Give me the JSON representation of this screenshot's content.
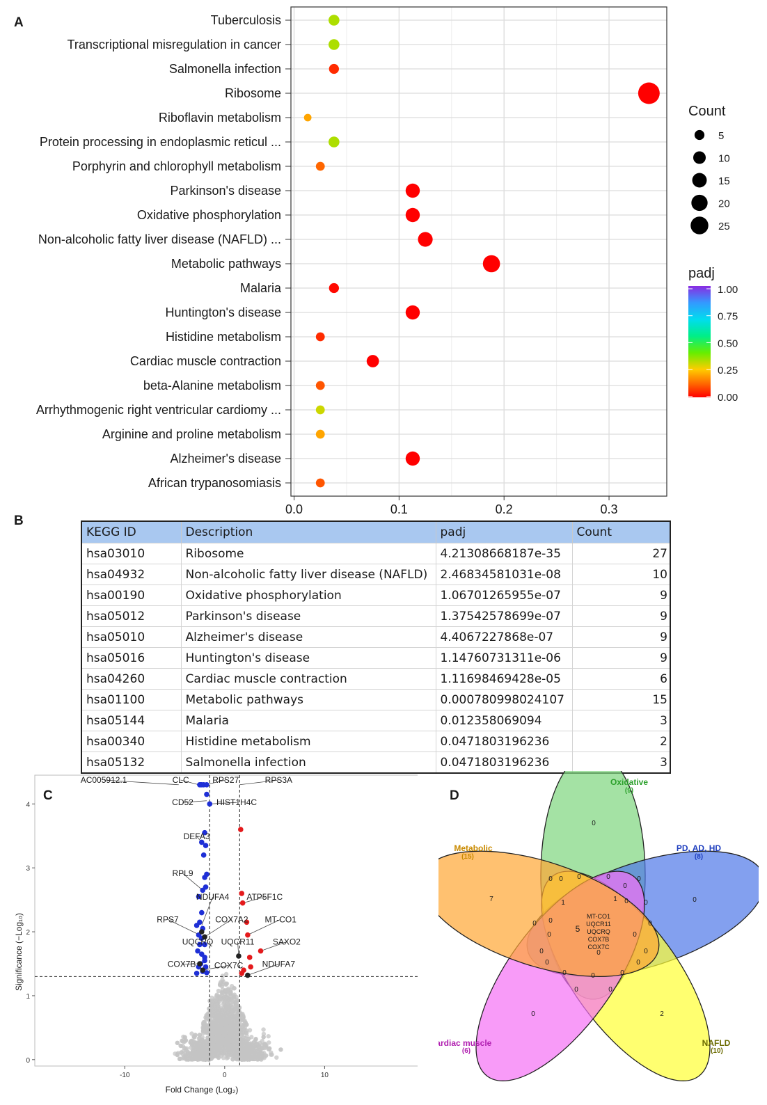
{
  "panels": {
    "a": "A",
    "b": "B",
    "c": "C",
    "d": "D"
  },
  "panel_a": {
    "chart_data": {
      "type": "scatter",
      "x_ticks": [
        "0.0",
        "0.1",
        "0.2",
        "0.3"
      ],
      "xlim": [
        -0.003,
        0.355
      ],
      "categories": [
        {
          "label": "Tuberculosis",
          "x": 0.038,
          "count": 4,
          "padj": 0.33
        },
        {
          "label": "Transcriptional misregulation in cancer",
          "x": 0.038,
          "count": 4,
          "padj": 0.33
        },
        {
          "label": "Salmonella infection",
          "x": 0.038,
          "count": 3,
          "padj": 0.05
        },
        {
          "label": "Ribosome",
          "x": 0.338,
          "count": 27,
          "padj": 0.0
        },
        {
          "label": "Riboflavin metabolism",
          "x": 0.013,
          "count": 1,
          "padj": 0.2
        },
        {
          "label": "Protein processing in endoplasmic reticul ...",
          "x": 0.038,
          "count": 4,
          "padj": 0.33
        },
        {
          "label": "Porphyrin and chlorophyll metabolism",
          "x": 0.025,
          "count": 2,
          "padj": 0.12
        },
        {
          "label": "Parkinson's disease",
          "x": 0.113,
          "count": 9,
          "padj": 0.0
        },
        {
          "label": "Oxidative phosphorylation",
          "x": 0.113,
          "count": 9,
          "padj": 0.0
        },
        {
          "label": "Non-alcoholic fatty liver disease (NAFLD) ...",
          "x": 0.125,
          "count": 10,
          "padj": 0.0
        },
        {
          "label": "Metabolic pathways",
          "x": 0.188,
          "count": 15,
          "padj": 0.0
        },
        {
          "label": "Malaria",
          "x": 0.038,
          "count": 3,
          "padj": 0.01
        },
        {
          "label": "Huntington's disease",
          "x": 0.113,
          "count": 9,
          "padj": 0.0
        },
        {
          "label": "Histidine metabolism",
          "x": 0.025,
          "count": 2,
          "padj": 0.05
        },
        {
          "label": "Cardiac muscle contraction",
          "x": 0.075,
          "count": 6,
          "padj": 0.0
        },
        {
          "label": "beta-Alanine metabolism",
          "x": 0.025,
          "count": 2,
          "padj": 0.1
        },
        {
          "label": "Arrhythmogenic right ventricular cardiomy ...",
          "x": 0.025,
          "count": 2,
          "padj": 0.3
        },
        {
          "label": "Arginine and proline metabolism",
          "x": 0.025,
          "count": 2,
          "padj": 0.2
        },
        {
          "label": "Alzheimer's disease",
          "x": 0.113,
          "count": 9,
          "padj": 0.0
        },
        {
          "label": "African trypanosomiasis",
          "x": 0.025,
          "count": 2,
          "padj": 0.1
        }
      ],
      "legend_count_title": "Count",
      "legend_count_values": [
        "5",
        "10",
        "15",
        "20",
        "25"
      ],
      "legend_padj_title": "padj",
      "legend_padj_ticks": [
        "1.00",
        "0.75",
        "0.50",
        "0.25",
        "0.00"
      ],
      "colors": {
        "low": "#ff0000",
        "high": "#8a2be2",
        "grid": "#e4e4e4",
        "panel_bg": "#ffffff"
      }
    }
  },
  "panel_b": {
    "headers": [
      "KEGG ID",
      "Description",
      "padj",
      "Count"
    ],
    "rows": [
      [
        "hsa03010",
        "Ribosome",
        "4.21308668187e-35",
        "27"
      ],
      [
        "hsa04932",
        "Non-alcoholic fatty liver disease (NAFLD)",
        "2.46834581031e-08",
        "10"
      ],
      [
        "hsa00190",
        "Oxidative phosphorylation",
        "1.06701265955e-07",
        "9"
      ],
      [
        "hsa05012",
        "Parkinson's disease",
        "1.37542578699e-07",
        "9"
      ],
      [
        "hsa05010",
        "Alzheimer's disease",
        "4.4067227868e-07",
        "9"
      ],
      [
        "hsa05016",
        "Huntington's disease",
        "1.14760731311e-06",
        "9"
      ],
      [
        "hsa04260",
        "Cardiac muscle contraction",
        "1.11698469428e-05",
        "6"
      ],
      [
        "hsa01100",
        "Metabolic pathways",
        "0.000780998024107",
        "15"
      ],
      [
        "hsa05144",
        "Malaria",
        "0.012358069094",
        "3"
      ],
      [
        "hsa00340",
        "Histidine metabolism",
        "0.0471803196236",
        "2"
      ],
      [
        "hsa05132",
        "Salmonella infection",
        "0.0471803196236",
        "3"
      ]
    ]
  },
  "panel_c": {
    "chart_data": {
      "type": "scatter",
      "xlabel": "Fold Change (Log₂)",
      "ylabel": "Significance (−Log₁₀)",
      "x_ticks": [
        "-10",
        "0",
        "10"
      ],
      "y_ticks": [
        "0",
        "1",
        "2",
        "3",
        "4"
      ],
      "xlim": [
        -19,
        20
      ],
      "ylim": [
        -0.1,
        4.45
      ],
      "threshold_x": [
        -1.5,
        1.5
      ],
      "threshold_y": 1.3,
      "blue_points": [
        [
          -2.5,
          4.3
        ],
        [
          -2.4,
          4.3
        ],
        [
          -2.3,
          4.3
        ],
        [
          -2.1,
          4.3
        ],
        [
          -1.8,
          4.3
        ],
        [
          -1.8,
          4.15
        ],
        [
          -1.5,
          4.0
        ],
        [
          -2.3,
          3.4
        ],
        [
          -2.0,
          3.55
        ],
        [
          -1.9,
          3.35
        ],
        [
          -2.1,
          3.2
        ],
        [
          -1.8,
          2.9
        ],
        [
          -2.0,
          2.85
        ],
        [
          -2.2,
          2.65
        ],
        [
          -2.6,
          2.55
        ],
        [
          -1.9,
          2.7
        ],
        [
          -2.3,
          2.3
        ],
        [
          -2.5,
          2.15
        ],
        [
          -2.2,
          2.05
        ],
        [
          -2.8,
          2.1
        ],
        [
          -2.6,
          1.95
        ],
        [
          -2.3,
          1.9
        ],
        [
          -2.5,
          1.8
        ],
        [
          -2.0,
          1.8
        ],
        [
          -2.7,
          1.7
        ],
        [
          -2.3,
          1.65
        ],
        [
          -2.0,
          1.6
        ],
        [
          -2.4,
          1.5
        ],
        [
          -2.6,
          1.45
        ],
        [
          -1.9,
          1.45
        ],
        [
          -2.2,
          1.38
        ],
        [
          -1.8,
          1.36
        ],
        [
          -2.0,
          1.55
        ],
        [
          -2.8,
          1.35
        ]
      ],
      "red_points": [
        [
          1.6,
          3.6
        ],
        [
          1.7,
          2.6
        ],
        [
          1.8,
          2.45
        ],
        [
          2.2,
          2.15
        ],
        [
          2.3,
          1.95
        ],
        [
          3.6,
          1.7
        ],
        [
          2.5,
          1.6
        ],
        [
          2.6,
          1.45
        ],
        [
          1.9,
          1.4
        ],
        [
          1.7,
          1.35
        ]
      ],
      "black_points": [
        [
          -2.3,
          2.0
        ],
        [
          -2.0,
          1.92
        ],
        [
          -2.5,
          1.5
        ],
        [
          -2.2,
          1.4
        ],
        [
          1.4,
          1.62
        ],
        [
          2.3,
          1.32
        ]
      ],
      "labels": [
        {
          "text": "AC005912.1",
          "x": -12.1,
          "y": 4.33,
          "ax": -4.6,
          "ay": 4.3
        },
        {
          "text": "CLC",
          "x": -4.4,
          "y": 4.33,
          "ax": -2.6,
          "ay": 4.3
        },
        {
          "text": "RPS27",
          "x": 0.1,
          "y": 4.33,
          "ax": -1.9,
          "ay": 4.3
        },
        {
          "text": "RPS3A",
          "x": 5.4,
          "y": 4.33,
          "ax": 1.5,
          "ay": 4.3
        },
        {
          "text": "CD52",
          "x": -4.2,
          "y": 3.98,
          "ax": -1.8,
          "ay": 4.05
        },
        {
          "text": "HIST1H4C",
          "x": 1.2,
          "y": 3.98,
          "ax": -1.5,
          "ay": 4.0
        },
        {
          "text": "DEFA3",
          "x": -2.8,
          "y": 3.45,
          "ax": -2.3,
          "ay": 3.4
        },
        {
          "text": "RPL9",
          "x": -4.2,
          "y": 2.87,
          "ax": -2.2,
          "ay": 2.65
        },
        {
          "text": "NDUFA4",
          "x": -1.2,
          "y": 2.5,
          "ax": -2.3,
          "ay": 2.1
        },
        {
          "text": "ATP5F1C",
          "x": 4.0,
          "y": 2.5,
          "ax": 1.8,
          "ay": 2.45
        },
        {
          "text": "RPS7",
          "x": -5.7,
          "y": 2.15,
          "ax": -2.5,
          "ay": 1.95
        },
        {
          "text": "COX7A2",
          "x": 0.7,
          "y": 2.15,
          "ax": -2.0,
          "ay": 1.92
        },
        {
          "text": "MT-CO1",
          "x": 5.6,
          "y": 2.15,
          "ax": 2.3,
          "ay": 1.95
        },
        {
          "text": "UQCRQ",
          "x": -2.7,
          "y": 1.8,
          "ax": -2.3,
          "ay": 1.8
        },
        {
          "text": "UQCR11",
          "x": 1.3,
          "y": 1.8,
          "ax": 1.4,
          "ay": 1.62
        },
        {
          "text": "SAXO2",
          "x": 6.2,
          "y": 1.8,
          "ax": 3.6,
          "ay": 1.7
        },
        {
          "text": "COX7B",
          "x": -4.3,
          "y": 1.45,
          "ax": -2.5,
          "ay": 1.5
        },
        {
          "text": "COX7C",
          "x": 0.4,
          "y": 1.43,
          "ax": -2.2,
          "ay": 1.4
        },
        {
          "text": "NDUFA7",
          "x": 5.4,
          "y": 1.45,
          "ax": 2.3,
          "ay": 1.32
        }
      ],
      "colors": {
        "blue": "#1e2fd6",
        "red": "#e41a1c",
        "black": "#222222",
        "grey": "#c4c4c4"
      }
    }
  },
  "panel_d": {
    "sets": [
      {
        "name": "Oxidative",
        "count": "(9)",
        "color": "#2ca02c",
        "fill": "#7ed67e"
      },
      {
        "name": "PD, AD, HD",
        "count": "(8)",
        "color": "#1f3fbf",
        "fill": "#4f78e8"
      },
      {
        "name": "NAFLD",
        "count": "(10)",
        "color": "#6b6b00",
        "fill": "#ffff33"
      },
      {
        "name": "Cardiac muscle",
        "count": "(6)",
        "color": "#b01fb0",
        "fill": "#f571f5"
      },
      {
        "name": "Metabolic",
        "count": "(15)",
        "color": "#c98a00",
        "fill": "#ffa733"
      }
    ],
    "numbers": [
      "0",
      "0",
      "2",
      "7",
      "0",
      "0",
      "0",
      "0",
      "1",
      "0",
      "0",
      "0",
      "0",
      "0",
      "1",
      "0",
      "0",
      "0",
      "0",
      "0",
      "0",
      "0",
      "0",
      "0",
      "0",
      "0",
      "0",
      "0",
      "0",
      "0",
      "5"
    ],
    "center_genes": [
      "MT-CO1",
      "UQCR11",
      "UQCRQ",
      "COX7B",
      "COX7C"
    ]
  }
}
